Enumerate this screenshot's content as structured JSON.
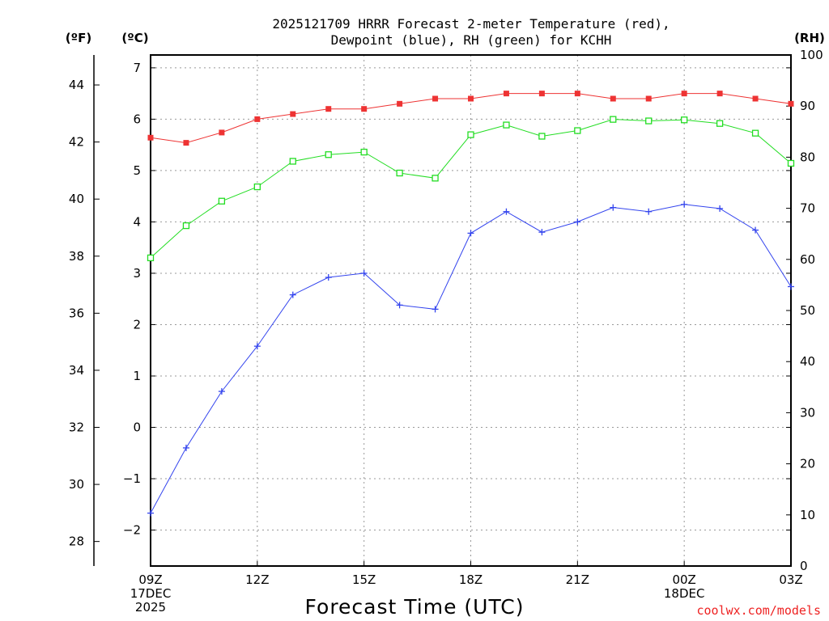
{
  "chart_data": {
    "type": "line",
    "title_line1": "2025121709 HRRR Forecast 2-meter Temperature (red),",
    "title_line2": "Dewpoint (blue), RH (green) for KCHH",
    "xlabel": "Forecast Time (UTC)",
    "credit": "coolwx.com/models",
    "units": {
      "fahrenheit": "(ºF)",
      "celsius": "(ºC)",
      "rh": "(RH)"
    },
    "x_hours": [
      0,
      1,
      2,
      3,
      4,
      5,
      6,
      7,
      8,
      9,
      10,
      11,
      12,
      13,
      14,
      15,
      16,
      17,
      18
    ],
    "xlim": [
      0,
      18
    ],
    "x_ticks": [
      {
        "hour": 0,
        "lines": [
          "09Z",
          "17DEC",
          "2025"
        ]
      },
      {
        "hour": 3,
        "lines": [
          "12Z"
        ]
      },
      {
        "hour": 6,
        "lines": [
          "15Z"
        ]
      },
      {
        "hour": 9,
        "lines": [
          "18Z"
        ]
      },
      {
        "hour": 12,
        "lines": [
          "21Z"
        ]
      },
      {
        "hour": 15,
        "lines": [
          "00Z",
          "18DEC"
        ]
      },
      {
        "hour": 18,
        "lines": [
          "03Z"
        ]
      }
    ],
    "ylim_c": [
      -2.7,
      7.25
    ],
    "y_ticks_c": [
      "−2",
      "−1",
      "0",
      "1",
      "2",
      "3",
      "4",
      "5",
      "6",
      "7"
    ],
    "y_ticks_f": [
      "28",
      "30",
      "32",
      "34",
      "36",
      "38",
      "40",
      "42",
      "44"
    ],
    "ylim_rh": [
      0,
      100
    ],
    "y_ticks_rh": [
      "0",
      "10",
      "20",
      "30",
      "40",
      "50",
      "60",
      "70",
      "80",
      "90",
      "100"
    ],
    "series": [
      {
        "name": "Temperature",
        "axis": "celsius",
        "color": "#ee3333",
        "marker": "filled-square",
        "values": [
          5.64,
          5.54,
          5.74,
          6.0,
          6.1,
          6.2,
          6.2,
          6.3,
          6.4,
          6.4,
          6.5,
          6.5,
          6.5,
          6.4,
          6.4,
          6.5,
          6.5,
          6.4,
          6.3
        ]
      },
      {
        "name": "Dewpoint",
        "axis": "celsius",
        "color": "#3344ee",
        "marker": "plus",
        "values": [
          -1.67,
          -0.4,
          0.7,
          1.58,
          2.58,
          2.92,
          3.0,
          2.38,
          2.3,
          3.78,
          4.2,
          3.8,
          4.0,
          4.28,
          4.2,
          4.34,
          4.26,
          3.84,
          2.74
        ]
      },
      {
        "name": "RH",
        "axis": "rh",
        "color": "#22dd22",
        "marker": "open-square",
        "values": [
          60.3,
          66.6,
          71.4,
          74.2,
          79.2,
          80.5,
          81.0,
          76.9,
          75.9,
          84.4,
          86.3,
          84.1,
          85.2,
          87.4,
          87.1,
          87.3,
          86.6,
          84.7,
          78.8
        ]
      }
    ]
  }
}
